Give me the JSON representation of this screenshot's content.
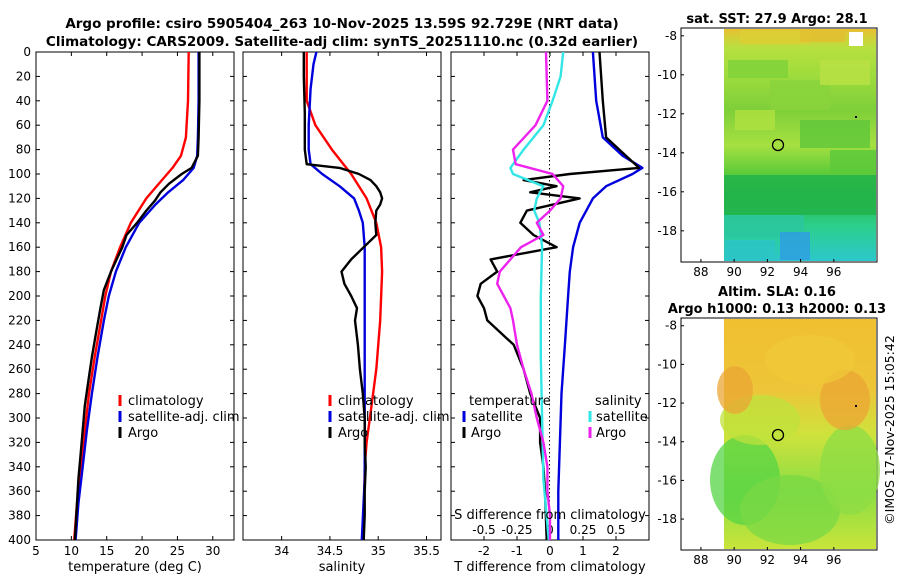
{
  "title_line1": "Argo profile: csiro 5905404_263 10-Nov-2025 13.59S 92.729E (NRT data)",
  "title_line2": "Climatology: CARS2009. Satellite-adj clim: synTS_20251110.nc (0.32d earlier)",
  "credit": "©IMOS 17-Nov-2025 15:05:42",
  "colors": {
    "climatology": "#ff0000",
    "satellite": "#0000dd",
    "argo": "#000000",
    "sal_satellite": "#33e6e6",
    "sal_argo": "#ee22ee",
    "sst_green": "#66cc44",
    "sst_yellow": "#ddee33",
    "sst_cyan": "#22cc99",
    "sla_orange": "#eeb833",
    "sla_green": "#66dd44"
  },
  "chart_data": [
    {
      "type": "line",
      "name": "temperature",
      "xlabel": "temperature (deg C)",
      "ylabel": "",
      "xlim": [
        5,
        33
      ],
      "ylim": [
        400,
        0
      ],
      "xticks": [
        "5",
        "10",
        "15",
        "20",
        "25",
        "30"
      ],
      "yticks": [
        "0",
        "20",
        "40",
        "60",
        "80",
        "100",
        "120",
        "140",
        "160",
        "180",
        "200",
        "220",
        "240",
        "260",
        "280",
        "300",
        "320",
        "340",
        "360",
        "380",
        "400"
      ],
      "legend": [
        "climatology",
        "satellite-adj. clim",
        "Argo"
      ],
      "legend_location": "lower right",
      "series": [
        {
          "name": "climatology",
          "depth": [
            0,
            40,
            70,
            85,
            95,
            105,
            120,
            140,
            160,
            180,
            200,
            220,
            250,
            280,
            310,
            340,
            370,
            400
          ],
          "values": [
            26.6,
            26.5,
            26.2,
            25.5,
            24.3,
            22.8,
            20.6,
            18.4,
            16.9,
            15.6,
            14.8,
            14.2,
            13.3,
            12.5,
            11.9,
            11.3,
            10.8,
            10.4
          ]
        },
        {
          "name": "satellite-adj. clim",
          "depth": [
            0,
            40,
            70,
            85,
            95,
            105,
            115,
            125,
            140,
            160,
            180,
            200,
            220,
            250,
            280,
            310,
            340,
            370,
            400
          ],
          "values": [
            28.0,
            28.0,
            27.9,
            27.8,
            27.3,
            25.8,
            23.7,
            21.9,
            19.6,
            17.7,
            16.3,
            15.3,
            14.6,
            13.7,
            12.9,
            12.2,
            11.6,
            11.0,
            10.6
          ]
        },
        {
          "name": "Argo",
          "depth": [
            0,
            40,
            70,
            85,
            95,
            100,
            108,
            115,
            122,
            130,
            140,
            150,
            160,
            170,
            180,
            195,
            210,
            230,
            250,
            270,
            290,
            310,
            330,
            350,
            370,
            400
          ],
          "values": [
            28.1,
            28.1,
            28.0,
            27.9,
            27.0,
            25.6,
            23.8,
            22.6,
            21.8,
            20.6,
            19.3,
            17.8,
            17.2,
            16.4,
            15.6,
            14.6,
            14.1,
            13.5,
            12.9,
            12.4,
            11.9,
            11.6,
            11.3,
            11.0,
            10.8,
            10.5
          ]
        }
      ]
    },
    {
      "type": "line",
      "name": "salinity",
      "xlabel": "salinity",
      "ylabel": "",
      "xlim": [
        33.6,
        35.65
      ],
      "ylim": [
        400,
        0
      ],
      "xticks": [
        "34",
        "34.5",
        "35",
        "35.5"
      ],
      "legend": [
        "climatology",
        "satellite-adj. clim",
        "Argo"
      ],
      "legend_location": "lower right",
      "series": [
        {
          "name": "climatology",
          "depth": [
            0,
            40,
            60,
            80,
            100,
            120,
            140,
            160,
            180,
            220,
            260,
            290,
            320,
            340,
            400
          ],
          "values": [
            34.26,
            34.26,
            34.35,
            34.52,
            34.72,
            34.88,
            34.98,
            35.03,
            35.04,
            35.02,
            34.98,
            34.93,
            34.88,
            34.86,
            34.85
          ]
        },
        {
          "name": "satellite-adj. clim",
          "depth": [
            0,
            10,
            30,
            60,
            80,
            92,
            100,
            110,
            120,
            130,
            140,
            160,
            200,
            250,
            300,
            350,
            400
          ],
          "values": [
            34.36,
            34.33,
            34.3,
            34.28,
            34.28,
            34.3,
            34.42,
            34.6,
            34.75,
            34.8,
            34.84,
            34.86,
            34.86,
            34.86,
            34.86,
            34.86,
            34.83
          ]
        },
        {
          "name": "Argo",
          "depth": [
            0,
            20,
            50,
            80,
            92,
            95,
            100,
            105,
            110,
            115,
            120,
            125,
            130,
            140,
            150,
            160,
            170,
            180,
            190,
            200,
            210,
            220,
            240,
            260,
            280,
            300,
            320,
            340,
            360,
            380,
            400
          ],
          "values": [
            34.23,
            34.23,
            34.24,
            34.24,
            34.26,
            34.6,
            34.8,
            34.92,
            34.98,
            35.02,
            35.04,
            35.02,
            34.98,
            34.97,
            34.98,
            34.85,
            34.72,
            34.62,
            34.65,
            34.72,
            34.78,
            34.76,
            34.79,
            34.81,
            34.84,
            34.86,
            34.86,
            34.87,
            34.86,
            34.86,
            34.85
          ]
        }
      ]
    },
    {
      "type": "line",
      "name": "difference from climatology",
      "xlabel": "T difference from climatology",
      "xlabel2": "S difference from climatology",
      "xlim": [
        -3,
        3
      ],
      "x2lim": [
        -0.75,
        0.75
      ],
      "ylim": [
        400,
        0
      ],
      "xticks": [
        "-2",
        "-1",
        "0",
        "1",
        "2"
      ],
      "x2ticks": [
        "-0.5",
        "-0.25",
        "0",
        "0.25",
        "0.5"
      ],
      "legend_left_title": "temperature",
      "legend_right_title": "salinity",
      "legend_left": [
        "satellite",
        "Argo"
      ],
      "legend_right": [
        "satellite",
        "Argo"
      ],
      "series": [
        {
          "name": "temperature satellite",
          "depth": [
            0,
            40,
            70,
            85,
            95,
            100,
            110,
            120,
            140,
            160,
            180,
            200,
            240,
            280,
            320,
            360,
            400
          ],
          "values": [
            1.3,
            1.4,
            1.6,
            2.2,
            2.8,
            2.5,
            1.7,
            1.3,
            0.9,
            0.7,
            0.6,
            0.55,
            0.45,
            0.35,
            0.3,
            0.25,
            0.25
          ]
        },
        {
          "name": "temperature Argo",
          "depth": [
            0,
            40,
            70,
            85,
            95,
            100,
            105,
            110,
            115,
            120,
            130,
            140,
            150,
            160,
            170,
            180,
            190,
            200,
            210,
            220,
            240,
            260,
            280,
            300,
            320,
            340,
            360,
            400
          ],
          "values": [
            1.5,
            1.6,
            1.7,
            2.3,
            2.7,
            0.6,
            -0.8,
            0.2,
            -0.6,
            0.9,
            -0.7,
            -0.9,
            -0.5,
            0.2,
            -1.8,
            -1.6,
            -2.1,
            -2.2,
            -2.0,
            -1.9,
            -1.1,
            -0.8,
            -0.6,
            -0.3,
            -0.3,
            -0.2,
            -0.15,
            -0.1
          ]
        },
        {
          "name": "salinity satellite",
          "depth": [
            0,
            20,
            40,
            60,
            80,
            95,
            100,
            110,
            120,
            130,
            140,
            160,
            200,
            250,
            300,
            350,
            400
          ],
          "values": [
            0.1,
            0.08,
            0.02,
            -0.05,
            -0.2,
            -0.3,
            -0.28,
            -0.05,
            -0.1,
            -0.12,
            -0.08,
            -0.06,
            -0.07,
            -0.07,
            -0.06,
            -0.05,
            -0.01
          ]
        },
        {
          "name": "salinity Argo",
          "depth": [
            0,
            40,
            60,
            80,
            92,
            100,
            110,
            120,
            130,
            140,
            150,
            160,
            170,
            180,
            190,
            200,
            210,
            220,
            240,
            260,
            280,
            300,
            320,
            340,
            360,
            380,
            400
          ],
          "values": [
            -0.03,
            -0.02,
            -0.11,
            -0.28,
            -0.26,
            0.02,
            0.1,
            0.08,
            0.0,
            -0.1,
            -0.05,
            -0.22,
            -0.3,
            -0.38,
            -0.4,
            -0.35,
            -0.3,
            -0.28,
            -0.25,
            -0.2,
            -0.14,
            -0.1,
            -0.05,
            -0.02,
            -0.02,
            0.0,
            0.0
          ]
        }
      ]
    },
    {
      "type": "heatmap",
      "name": "sst map",
      "title": "sat. SST: 27.9 Argo: 28.1",
      "xlim": [
        86.8,
        98.6
      ],
      "ylim": [
        -19.6,
        -7.6
      ],
      "xticks": [
        "88",
        "90",
        "92",
        "94",
        "96"
      ],
      "yticks": [
        "-8",
        "-10",
        "-12",
        "-14",
        "-16",
        "-18"
      ],
      "profile_position": [
        92.73,
        -13.59
      ]
    },
    {
      "type": "heatmap",
      "name": "sla map",
      "title1": "Altim. SLA: 0.16",
      "title2": "Argo h1000: 0.13 h2000: 0.13",
      "xlim": [
        86.8,
        98.6
      ],
      "ylim": [
        -19.6,
        -7.6
      ],
      "xticks": [
        "88",
        "90",
        "92",
        "94",
        "96"
      ],
      "yticks": [
        "-8",
        "-10",
        "-12",
        "-14",
        "-16",
        "-18"
      ],
      "profile_position": [
        92.73,
        -13.59
      ]
    }
  ]
}
